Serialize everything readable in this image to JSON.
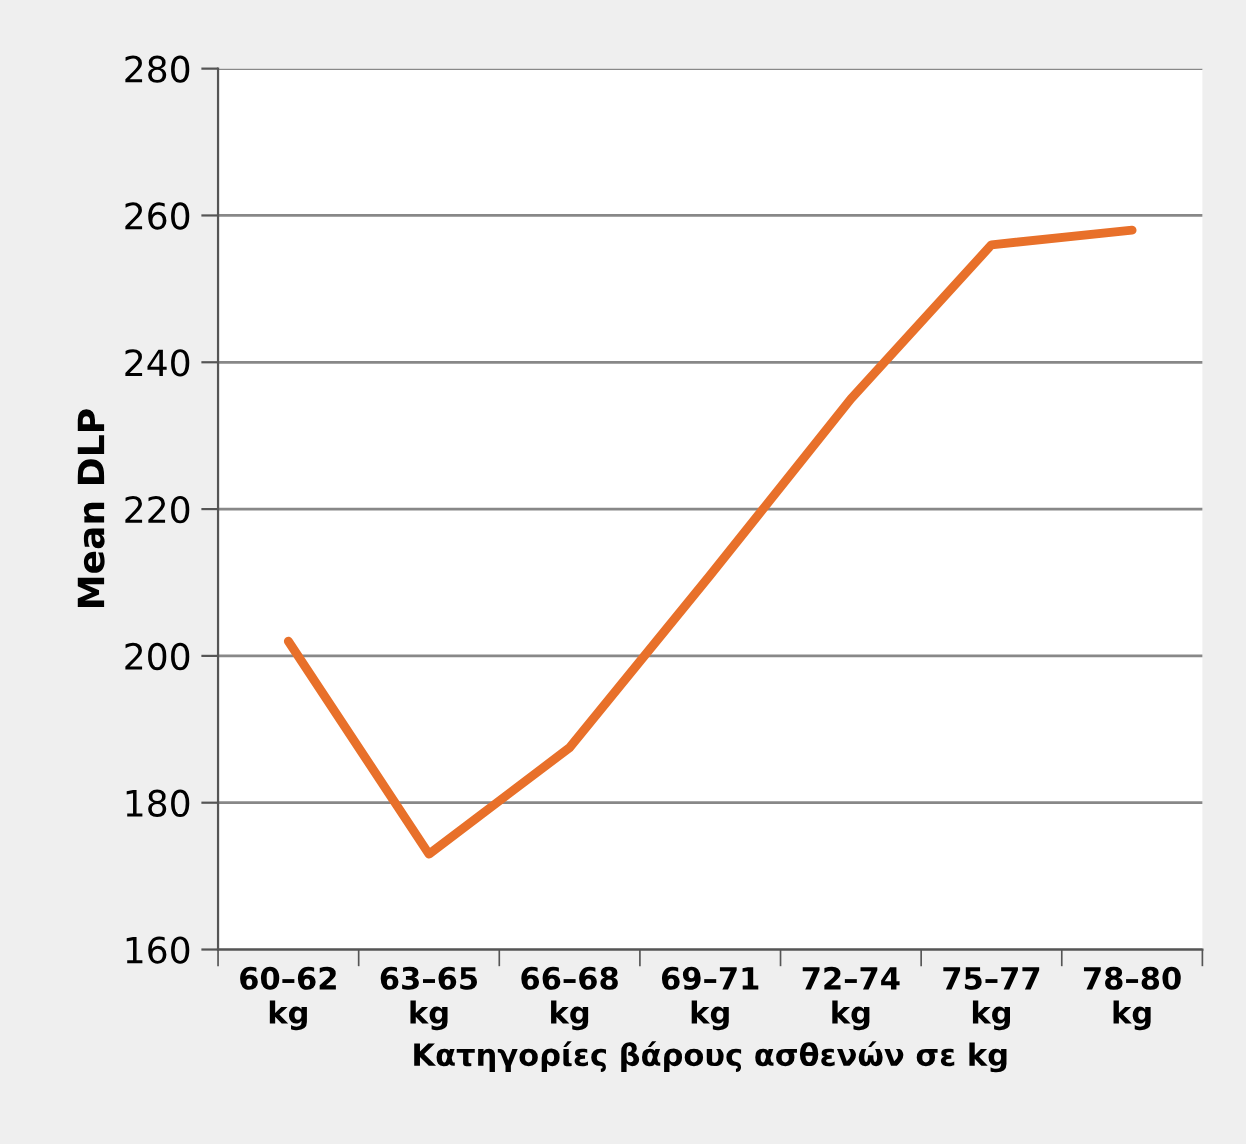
{
  "chart_data": {
    "type": "line",
    "xlabel": "Κατηγορίες βάρους ασθενών σε kg",
    "ylabel": "Mean DLP",
    "categories": [
      "60–62\nkg",
      "63–65\nkg",
      "66–68\nkg",
      "69–71\nkg",
      "72–74\nkg",
      "75–77\nkg",
      "78–80\nkg"
    ],
    "series": [
      {
        "color": "#e8702a",
        "values": [
          202,
          173,
          187.5,
          211,
          235,
          256,
          258
        ]
      }
    ],
    "ylim": [
      160,
      280
    ],
    "yticks": [
      160,
      180,
      200,
      220,
      240,
      260,
      280
    ],
    "grid": "y",
    "marker": "none",
    "line_style": "solid",
    "legend": false
  }
}
